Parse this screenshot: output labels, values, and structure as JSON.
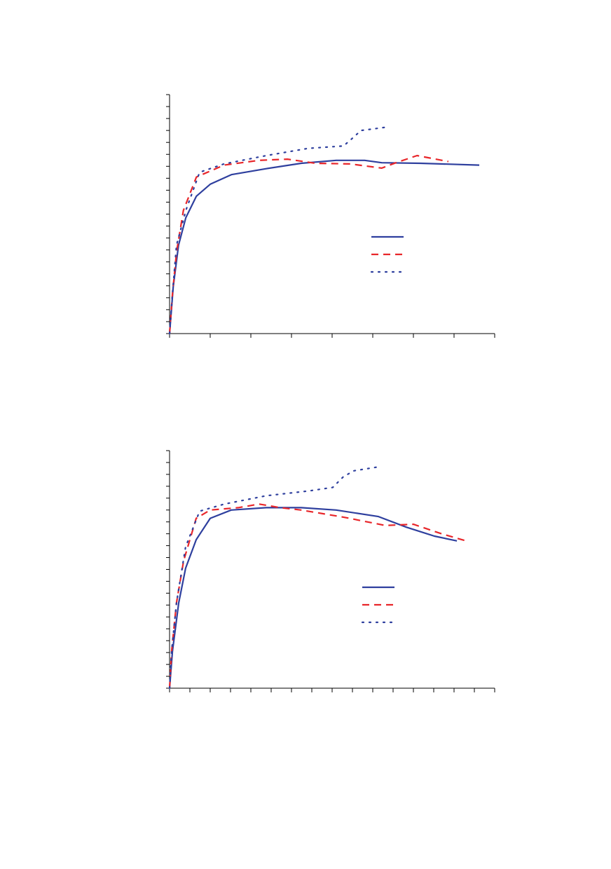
{
  "chart_data": [
    {
      "type": "line",
      "xlim": [
        0,
        8
      ],
      "ylim": [
        0,
        20
      ],
      "xticks": [
        0,
        1,
        2,
        3,
        4,
        5,
        6,
        7,
        8
      ],
      "yticks": [
        0,
        1,
        2,
        3,
        4,
        5,
        6,
        7,
        8,
        9,
        10,
        11,
        12,
        13,
        14,
        15,
        16,
        17,
        18,
        19,
        20
      ],
      "series": [
        {
          "color": "#2e3f9e",
          "style": "solid",
          "x": [
            0,
            0.09,
            0.22,
            0.4,
            0.66,
            1,
            1.52,
            2.38,
            3.24,
            4.1,
            4.8,
            5.22,
            6.17,
            7.62
          ],
          "values": [
            0,
            3.9,
            7.4,
            9.7,
            11.5,
            12.5,
            13.3,
            13.8,
            14.25,
            14.5,
            14.5,
            14.3,
            14.25,
            14.1
          ]
        },
        {
          "color": "#e8262a",
          "style": "dash",
          "x": [
            0,
            0.07,
            0.17,
            0.34,
            0.66,
            1.34,
            2.2,
            2.9,
            3.59,
            4.45,
            5.22,
            5.57,
            6.09,
            6.86
          ],
          "values": [
            0,
            3.3,
            6.8,
            10.3,
            13.1,
            14.1,
            14.5,
            14.6,
            14.25,
            14.2,
            13.85,
            14.3,
            14.9,
            14.4
          ]
        },
        {
          "color": "#2e3f9e",
          "style": "dot",
          "x": [
            0,
            0.07,
            0.17,
            0.4,
            0.74,
            1.34,
            2.38,
            3.41,
            4.28,
            4.45,
            4.71,
            5.4
          ],
          "values": [
            0,
            3.3,
            7.4,
            10.3,
            13.5,
            14.2,
            14.9,
            15.5,
            15.7,
            16.2,
            17,
            17.3
          ]
        }
      ]
    },
    {
      "type": "line",
      "xlim": [
        0,
        16
      ],
      "ylim": [
        0,
        20
      ],
      "xticks": [
        0,
        1,
        2,
        3,
        4,
        5,
        6,
        7,
        8,
        9,
        10,
        11,
        12,
        13,
        14,
        15,
        16
      ],
      "yticks": [
        0,
        1,
        2,
        3,
        4,
        5,
        6,
        7,
        8,
        9,
        10,
        11,
        12,
        13,
        14,
        15,
        16,
        17,
        18,
        19,
        20
      ],
      "series": [
        {
          "color": "#2e3f9e",
          "style": "solid",
          "x": [
            0,
            0.14,
            0.45,
            0.79,
            1.31,
            2,
            3.03,
            4.76,
            6.48,
            8.2,
            10.28,
            11.66,
            13.03,
            14.14
          ],
          "values": [
            0,
            3.1,
            7.2,
            10.1,
            12.5,
            14.3,
            15,
            15.2,
            15.2,
            15,
            14.45,
            13.55,
            12.8,
            12.4
          ]
        },
        {
          "color": "#e8262a",
          "style": "dash",
          "x": [
            0,
            0.1,
            0.34,
            0.69,
            1.31,
            2,
            3.38,
            4.41,
            5.45,
            6.48,
            8.55,
            10.62,
            12,
            13.38,
            14.59
          ],
          "values": [
            0,
            3.1,
            7.2,
            10.7,
            14.3,
            15,
            15.2,
            15.5,
            15.2,
            15,
            14.4,
            13.7,
            13.8,
            13,
            12.4
          ]
        },
        {
          "color": "#2e3f9e",
          "style": "dot",
          "x": [
            0,
            0.1,
            0.34,
            0.79,
            1.48,
            2.69,
            4.76,
            6.83,
            8.03,
            8.55,
            9.07,
            10.17
          ],
          "values": [
            0,
            3.1,
            7.2,
            11.9,
            14.9,
            15.5,
            16.2,
            16.6,
            16.9,
            17.8,
            18.3,
            18.6
          ]
        }
      ]
    }
  ]
}
